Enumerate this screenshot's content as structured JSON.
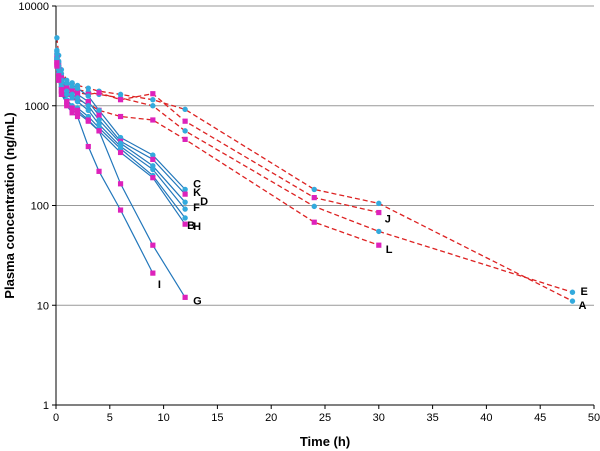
{
  "chart_data": {
    "type": "line",
    "title": "",
    "xlabel": "Time (h)",
    "ylabel": "Plasma concentration (ng/mL)",
    "xlim": [
      0,
      50
    ],
    "ylim": [
      1,
      10000
    ],
    "yscale": "log",
    "grid": "horizontal",
    "x_ticks": [
      "0",
      "5",
      "10",
      "15",
      "20",
      "25",
      "30",
      "35",
      "40",
      "45",
      "50"
    ],
    "y_ticks": [
      "1",
      "10",
      "100",
      "1000",
      "10000"
    ],
    "colors": {
      "cyan": "#33aadd",
      "magenta": "#dd22bb",
      "blue_line": "#2277bb",
      "red_dashed": "#dd2222",
      "grid": "#999999"
    },
    "series": [
      {
        "name": "A",
        "marker": "cyan",
        "line": "red_dashed",
        "x": [
          0.083,
          0.25,
          0.5,
          1,
          1.5,
          2,
          3,
          4,
          6,
          9,
          12,
          24,
          30,
          48
        ],
        "y": [
          4800,
          3200,
          2300,
          1800,
          1700,
          1600,
          1500,
          1400,
          1300,
          1150,
          920,
          145,
          105,
          11
        ]
      },
      {
        "name": "E",
        "marker": "cyan",
        "line": "red_dashed",
        "x": [
          0.083,
          0.25,
          0.5,
          1,
          1.5,
          2,
          3,
          4,
          6,
          9,
          12,
          24,
          30,
          48
        ],
        "y": [
          3500,
          2700,
          2000,
          1650,
          1500,
          1450,
          1380,
          1300,
          1200,
          1000,
          560,
          98,
          55,
          13.5
        ]
      },
      {
        "name": "J",
        "marker": "magenta",
        "line": "red_dashed",
        "x": [
          0.083,
          0.25,
          0.5,
          1,
          1.5,
          2,
          3,
          4,
          6,
          9,
          12,
          24,
          30
        ],
        "y": [
          3000,
          2500,
          1900,
          1500,
          1400,
          1350,
          1300,
          1350,
          1150,
          1320,
          700,
          120,
          85
        ]
      },
      {
        "name": "L",
        "marker": "magenta",
        "line": "red_dashed",
        "x": [
          0.083,
          0.25,
          0.5,
          1,
          1.5,
          2,
          3,
          4,
          6,
          9,
          12,
          24,
          30
        ],
        "y": [
          2800,
          2200,
          1600,
          1300,
          1200,
          1150,
          1050,
          900,
          780,
          720,
          460,
          68,
          40
        ]
      },
      {
        "name": "C",
        "marker": "cyan",
        "line": "blue_solid",
        "x": [
          0.083,
          0.25,
          0.5,
          1,
          1.5,
          2,
          3,
          4,
          6,
          9,
          12
        ],
        "y": [
          3600,
          2800,
          2100,
          1700,
          1600,
          1500,
          1250,
          900,
          480,
          320,
          145
        ]
      },
      {
        "name": "K",
        "marker": "magenta",
        "line": "blue_solid",
        "x": [
          0.083,
          0.25,
          0.5,
          1,
          1.5,
          2,
          3,
          4,
          6,
          9,
          12
        ],
        "y": [
          3200,
          2400,
          1900,
          1500,
          1400,
          1300,
          1100,
          800,
          440,
          290,
          130
        ]
      },
      {
        "name": "D",
        "marker": "cyan",
        "line": "blue_solid",
        "x": [
          0.083,
          0.25,
          0.5,
          1,
          1.5,
          2,
          3,
          4,
          6,
          9,
          12
        ],
        "y": [
          3300,
          2500,
          1800,
          1400,
          1300,
          1200,
          1000,
          720,
          420,
          250,
          108
        ]
      },
      {
        "name": "F",
        "marker": "cyan",
        "line": "blue_solid",
        "x": [
          0.083,
          0.25,
          0.5,
          1,
          1.5,
          2,
          3,
          4,
          6,
          9,
          12
        ],
        "y": [
          3000,
          2300,
          1700,
          1300,
          1200,
          1100,
          900,
          650,
          390,
          230,
          92
        ]
      },
      {
        "name": "B",
        "marker": "cyan",
        "line": "blue_solid",
        "x": [
          0.083,
          0.25,
          0.5,
          1,
          1.5,
          2,
          3,
          4,
          6,
          9,
          12
        ],
        "y": [
          2900,
          2100,
          1550,
          1150,
          1000,
          950,
          780,
          600,
          370,
          200,
          75
        ]
      },
      {
        "name": "H",
        "marker": "magenta",
        "line": "blue_solid",
        "x": [
          0.083,
          0.25,
          0.5,
          1,
          1.5,
          2,
          3,
          4,
          6,
          9,
          12
        ],
        "y": [
          2700,
          2000,
          1450,
          1100,
          950,
          900,
          720,
          560,
          340,
          190,
          65
        ]
      },
      {
        "name": "I",
        "marker": "magenta",
        "line": "blue_solid",
        "x": [
          0.083,
          0.25,
          0.5,
          1,
          1.5,
          2,
          3,
          4,
          6,
          9
        ],
        "y": [
          2600,
          1900,
          1400,
          1000,
          850,
          780,
          390,
          220,
          90,
          21
        ]
      },
      {
        "name": "G",
        "marker": "magenta",
        "line": "blue_solid",
        "x": [
          0.083,
          0.25,
          0.5,
          1,
          1.5,
          2,
          3,
          4,
          6,
          9,
          12
        ],
        "y": [
          2500,
          1800,
          1300,
          1050,
          900,
          850,
          700,
          560,
          165,
          40,
          12
        ]
      }
    ]
  }
}
